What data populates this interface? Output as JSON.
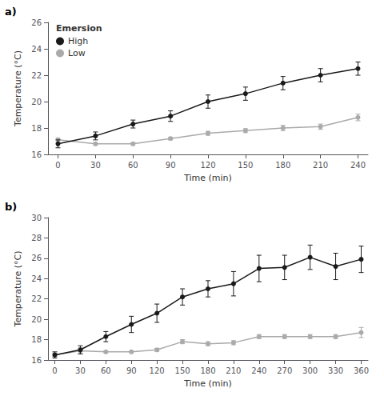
{
  "chart_data": [
    {
      "type": "line",
      "annotation": "a)",
      "x_label": "Time (min)",
      "y_label": "Temperature (°C)",
      "x": [
        0,
        30,
        60,
        90,
        120,
        150,
        180,
        210,
        240
      ],
      "series": [
        {
          "name": "High",
          "color": "#1a1a1a",
          "marker": "circle",
          "values": [
            16.8,
            17.4,
            18.3,
            18.9,
            20.0,
            20.6,
            21.4,
            22.0,
            22.5
          ],
          "errors": [
            0.3,
            0.3,
            0.3,
            0.4,
            0.5,
            0.5,
            0.5,
            0.5,
            0.5
          ]
        },
        {
          "name": "Low",
          "color": "#aaaaaa",
          "marker": "circle",
          "values": [
            17.1,
            16.8,
            16.8,
            17.2,
            17.6,
            17.8,
            18.0,
            18.1,
            18.8
          ],
          "errors": [
            0.15,
            0.1,
            0.1,
            0.1,
            0.15,
            0.15,
            0.2,
            0.2,
            0.25
          ]
        }
      ],
      "xlim": [
        -8,
        248
      ],
      "xticks": [
        0,
        30,
        60,
        90,
        120,
        150,
        180,
        210,
        240
      ],
      "ylim": [
        16,
        26
      ],
      "yticks": [
        16,
        18,
        20,
        22,
        24,
        26
      ],
      "grid": false,
      "legend": "upper left",
      "legend_title": "Emersion"
    },
    {
      "type": "line",
      "annotation": "b)",
      "x_label": "Time (min)",
      "y_label": "Temperature (°C)",
      "x": [
        0,
        30,
        60,
        90,
        120,
        150,
        180,
        210,
        240,
        270,
        300,
        330,
        360
      ],
      "series": [
        {
          "name": "High",
          "color": "#1a1a1a",
          "marker": "circle",
          "values": [
            16.5,
            17.0,
            18.3,
            19.5,
            20.6,
            22.2,
            23.0,
            23.5,
            25.0,
            25.1,
            26.1,
            25.2,
            25.9
          ],
          "errors": [
            0.3,
            0.4,
            0.5,
            0.8,
            0.9,
            0.8,
            0.8,
            1.2,
            1.3,
            1.2,
            1.2,
            1.3,
            1.3
          ]
        },
        {
          "name": "Low",
          "color": "#aaaaaa",
          "marker": "circle",
          "values": [
            16.5,
            16.9,
            16.8,
            16.8,
            17.0,
            17.8,
            17.6,
            17.7,
            18.3,
            18.3,
            18.3,
            18.3,
            18.7
          ],
          "errors": [
            0.15,
            0.3,
            0.1,
            0.1,
            0.15,
            0.2,
            0.2,
            0.2,
            0.2,
            0.2,
            0.2,
            0.2,
            0.5
          ]
        }
      ],
      "xlim": [
        -8,
        368
      ],
      "xticks": [
        0,
        30,
        60,
        90,
        120,
        150,
        180,
        210,
        240,
        270,
        300,
        330,
        360
      ],
      "ylim": [
        16,
        30
      ],
      "yticks": [
        16,
        18,
        20,
        22,
        24,
        26,
        28,
        30
      ],
      "grid": false,
      "legend": false
    }
  ]
}
